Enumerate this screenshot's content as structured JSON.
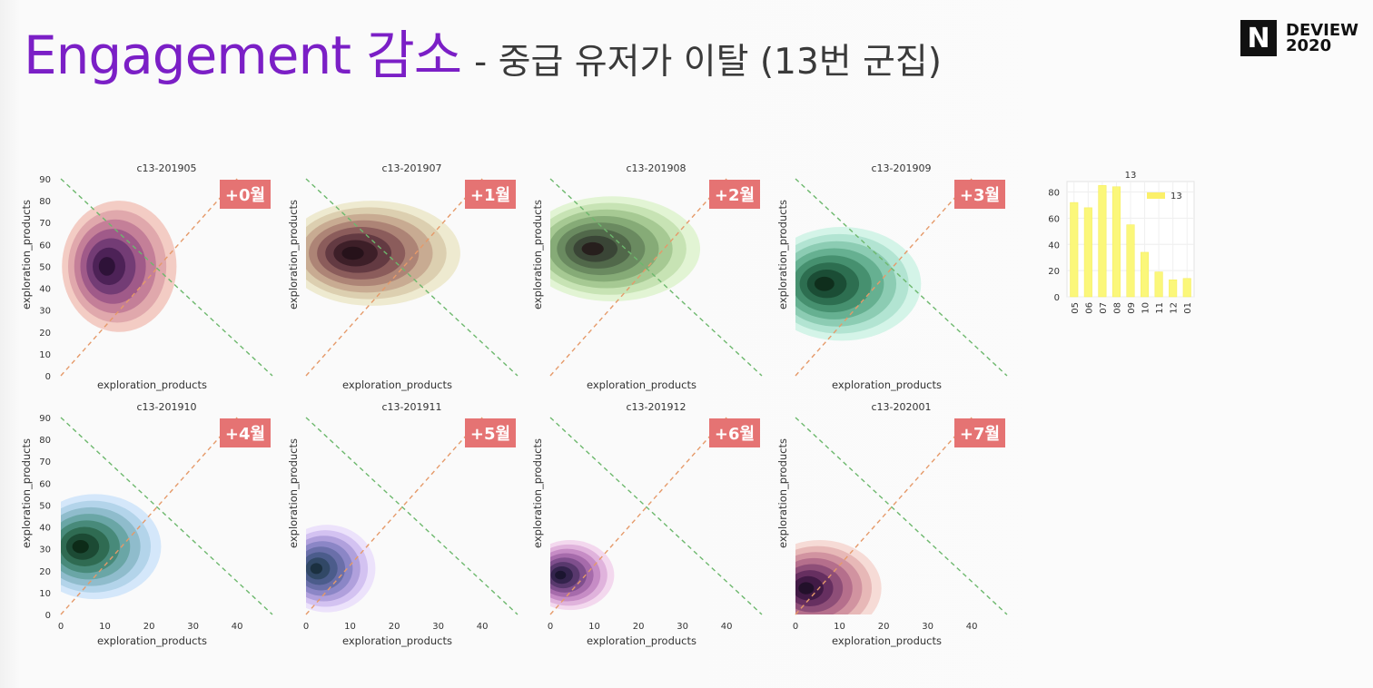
{
  "slide": {
    "title_main": "Engagement 감소",
    "title_sub": "- 중급 유저가 이탈 (13번 군집)",
    "logo_letter": "N",
    "logo_line1": "DEVIEW",
    "logo_line2": "2020"
  },
  "chart_data": [
    {
      "type": "heatmap",
      "title": "c13-201905",
      "badge": "+0월",
      "xlabel": "exploration_products",
      "ylabel": "exploration_products",
      "xlim": [
        0,
        48
      ],
      "ylim": [
        0,
        90
      ],
      "xticks": [],
      "yticks": [
        0,
        10,
        20,
        30,
        40,
        50,
        60,
        70,
        80,
        90
      ],
      "density_center": [
        10,
        50
      ],
      "density_spread": [
        13,
        30
      ],
      "palette": [
        "#f3ccc4",
        "#e0a8ac",
        "#c47f98",
        "#a05a89",
        "#733c75",
        "#4d2257",
        "#2e1238"
      ]
    },
    {
      "type": "heatmap",
      "title": "c13-201907",
      "badge": "+1월",
      "xlabel": "exploration_products",
      "ylabel": "exploration_products",
      "xlim": [
        0,
        48
      ],
      "ylim": [
        0,
        90
      ],
      "xticks": [],
      "yticks": [],
      "density_center": [
        10,
        56
      ],
      "density_spread": [
        20,
        24
      ],
      "palette": [
        "#eeead0",
        "#dccfb0",
        "#c8ab92",
        "#ad8476",
        "#8b5c5b",
        "#633a42",
        "#3d1f28",
        "#26121a"
      ]
    },
    {
      "type": "heatmap",
      "title": "c13-201908",
      "badge": "+2월",
      "xlabel": "exploration_products",
      "ylabel": "exploration_products",
      "xlim": [
        0,
        48
      ],
      "ylim": [
        0,
        90
      ],
      "xticks": [],
      "yticks": [],
      "density_center": [
        9,
        58
      ],
      "density_spread": [
        20,
        24
      ],
      "palette": [
        "#e2f4d4",
        "#c7e3b4",
        "#a6c993",
        "#86ab77",
        "#6a8a60",
        "#51684a",
        "#3a4536",
        "#271f1d"
      ]
    },
    {
      "type": "heatmap",
      "title": "c13-201909",
      "badge": "+3월",
      "xlabel": "exploration_products",
      "ylabel": "exploration_products",
      "xlim": [
        0,
        48
      ],
      "ylim": [
        0,
        90
      ],
      "xticks": [],
      "yticks": [],
      "density_center": [
        6,
        42
      ],
      "density_spread": [
        18,
        26
      ],
      "palette": [
        "#d4f4e8",
        "#b2e4d2",
        "#8cccb3",
        "#66b091",
        "#46906f",
        "#2d6e50",
        "#1b4d35",
        "#0f2e1c"
      ]
    },
    {
      "type": "heatmap",
      "title": "c13-201910",
      "badge": "+4월",
      "xlabel": "exploration_products",
      "ylabel": "exploration_products",
      "xlim": [
        0,
        48
      ],
      "ylim": [
        0,
        90
      ],
      "xticks": [
        0,
        10,
        20,
        30,
        40
      ],
      "yticks": [
        0,
        10,
        20,
        30,
        40,
        50,
        60,
        70,
        80,
        90
      ],
      "density_center": [
        4,
        31
      ],
      "density_spread": [
        15,
        24
      ],
      "palette": [
        "#d4e7fa",
        "#b3d4ea",
        "#8fbccc",
        "#6aa6a6",
        "#488a7a",
        "#2f6b52",
        "#1c4a34",
        "#0d2b18"
      ]
    },
    {
      "type": "heatmap",
      "title": "c13-201911",
      "badge": "+5월",
      "xlabel": "exploration_products",
      "ylabel": "exploration_products",
      "xlim": [
        0,
        48
      ],
      "ylim": [
        0,
        90
      ],
      "xticks": [
        0,
        10,
        20,
        30,
        40
      ],
      "yticks": [],
      "density_center": [
        2,
        21
      ],
      "density_spread": [
        11,
        20
      ],
      "palette": [
        "#ece2fb",
        "#d3c2f1",
        "#b0a0dc",
        "#8b86c6",
        "#6a6fa9",
        "#4b5c8b",
        "#314866",
        "#1b3040"
      ]
    },
    {
      "type": "heatmap",
      "title": "c13-201912",
      "badge": "+6월",
      "xlabel": "exploration_products",
      "ylabel": "exploration_products",
      "xlim": [
        0,
        48
      ],
      "ylim": [
        0,
        90
      ],
      "xticks": [
        0,
        10,
        20,
        30,
        40
      ],
      "yticks": [],
      "density_center": [
        2,
        18
      ],
      "density_spread": [
        10,
        16
      ],
      "palette": [
        "#f3d8ee",
        "#e0b3dc",
        "#c68cc5",
        "#a66bab",
        "#7f4f8d",
        "#58386d",
        "#33234c",
        "#1b1530"
      ]
    },
    {
      "type": "heatmap",
      "title": "c13-202001",
      "badge": "+7월",
      "xlabel": "exploration_products",
      "ylabel": "exploration_products",
      "xlim": [
        0,
        48
      ],
      "ylim": [
        0,
        90
      ],
      "xticks": [
        0,
        10,
        20,
        30,
        40
      ],
      "yticks": [],
      "density_center": [
        2,
        12
      ],
      "density_spread": [
        14,
        22
      ],
      "palette": [
        "#f6dbd6",
        "#e7b8b7",
        "#d193a0",
        "#b56f8c",
        "#8e4e78",
        "#662f60",
        "#411a45",
        "#22102a"
      ]
    },
    {
      "type": "bar",
      "title": "13",
      "categories": [
        "05",
        "06",
        "07",
        "08",
        "09",
        "10",
        "11",
        "12",
        "01"
      ],
      "series": [
        {
          "name": "13",
          "values": [
            72,
            68,
            85,
            84,
            55,
            34,
            19,
            13,
            14
          ]
        }
      ],
      "ylim": [
        0,
        88
      ],
      "yticks": [
        0,
        20,
        40,
        60,
        80
      ],
      "legend": "top-right",
      "colors": {
        "bar": "#fbf77a",
        "bar_edge": "#f5ec55",
        "legend_swatch": "#fbf06a"
      }
    }
  ]
}
